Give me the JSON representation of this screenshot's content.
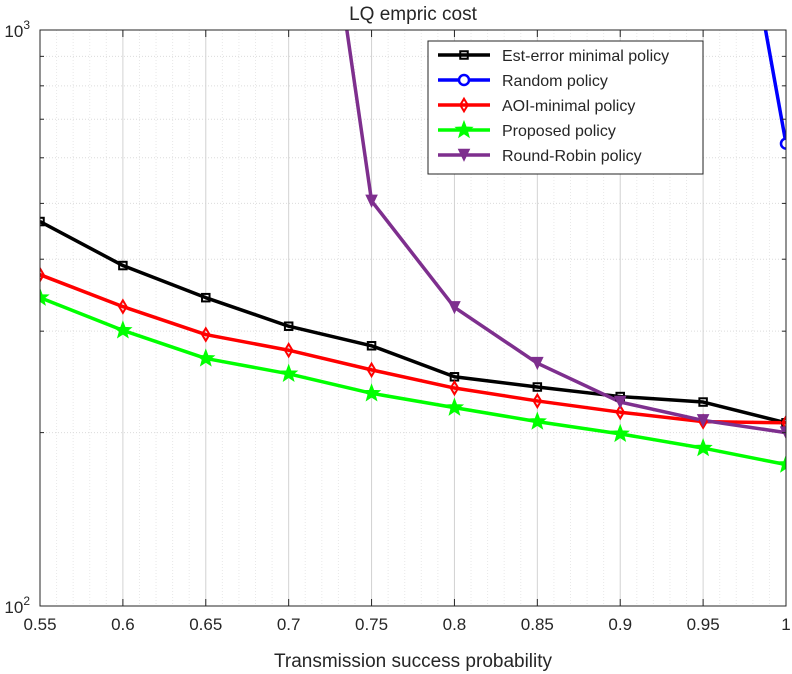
{
  "chart_data": {
    "type": "line",
    "title": "LQ empric cost",
    "xlabel": "Transmission success probability",
    "ylabel": "",
    "xlim": [
      0.55,
      1
    ],
    "ylim": [
      100,
      1000
    ],
    "yscale": "log",
    "grid": true,
    "minor_grid": true,
    "legend_position": "top-right",
    "xticks": [
      0.55,
      0.6,
      0.65,
      0.7,
      0.75,
      0.8,
      0.85,
      0.9,
      0.95,
      1
    ],
    "xtick_labels": [
      "0.55",
      "0.6",
      "0.65",
      "0.7",
      "0.75",
      "0.8",
      "0.85",
      "0.9",
      "0.95",
      "1"
    ],
    "ytick_labels": [
      {
        "value": 100,
        "base": "10",
        "exp": "2"
      },
      {
        "value": 1000,
        "base": "10",
        "exp": "3"
      }
    ],
    "x": [
      0.55,
      0.6,
      0.65,
      0.7,
      0.75,
      0.8,
      0.85,
      0.9,
      0.95,
      1
    ],
    "series": [
      {
        "name": "Est-error minimal policy",
        "color": "#000000",
        "marker": "square",
        "values": [
          465,
          390,
          343,
          306,
          283,
          250,
          240,
          231,
          226,
          208
        ]
      },
      {
        "name": "Random policy",
        "color": "#0000ff",
        "marker": "circle",
        "values": [
          null,
          null,
          null,
          null,
          null,
          null,
          null,
          null,
          4000,
          635
        ]
      },
      {
        "name": "AOI-minimal policy",
        "color": "#ff0000",
        "marker": "diamond",
        "values": [
          376,
          331,
          296,
          278,
          257,
          239,
          227,
          217,
          209,
          208
        ]
      },
      {
        "name": "Proposed policy",
        "color": "#00ff00",
        "marker": "star",
        "values": [
          343,
          301,
          269,
          253,
          234,
          221,
          209,
          199,
          188,
          176
        ]
      },
      {
        "name": "Round-Robin policy",
        "color": "#7e2f8e",
        "marker": "triangle-down",
        "values": [
          null,
          null,
          null,
          null,
          505,
          330,
          264,
          226,
          210,
          200
        ],
        "off_chart_start": {
          "x": 0.7,
          "y": 5000
        }
      }
    ]
  }
}
